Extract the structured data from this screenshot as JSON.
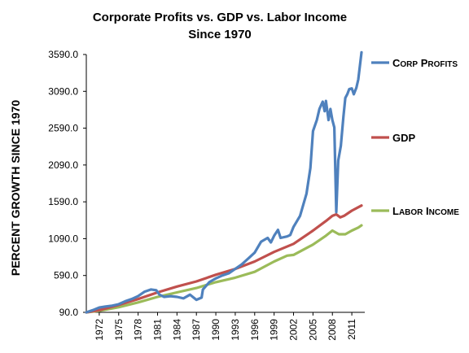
{
  "chart_data": {
    "type": "line",
    "title": "Corporate Profits vs. GDP vs. Labor Income",
    "subtitle": "Since 1970",
    "xlabel": "",
    "ylabel": "PERCENT GROWTH SINCE 1970",
    "xlim": [
      1970,
      2013
    ],
    "ylim": [
      90,
      3590
    ],
    "yticks": [
      90,
      590,
      1090,
      1590,
      2090,
      2590,
      3090,
      3590
    ],
    "ytick_labels": [
      "90.0",
      "590.0",
      "1090.0",
      "1590.0",
      "2090.0",
      "2590.0",
      "3090.0",
      "3590.0"
    ],
    "xtick_labels": [
      "1972",
      "1975",
      "1978",
      "1981",
      "1984",
      "1987",
      "1990",
      "1993",
      "1996",
      "1999",
      "2002",
      "2005",
      "2008",
      "2011"
    ],
    "grid": false,
    "legend": "right",
    "series": [
      {
        "name": "Corp profits",
        "color": "#4f81bd",
        "points": [
          [
            1970,
            90
          ],
          [
            1971,
            120
          ],
          [
            1972,
            155
          ],
          [
            1973,
            170
          ],
          [
            1974,
            180
          ],
          [
            1975,
            200
          ],
          [
            1976,
            240
          ],
          [
            1977,
            270
          ],
          [
            1978,
            310
          ],
          [
            1979,
            370
          ],
          [
            1980,
            400
          ],
          [
            1980.8,
            390
          ],
          [
            1981.3,
            330
          ],
          [
            1982,
            300
          ],
          [
            1983,
            310
          ],
          [
            1984,
            300
          ],
          [
            1985,
            280
          ],
          [
            1986,
            330
          ],
          [
            1987,
            260
          ],
          [
            1987.8,
            290
          ],
          [
            1988,
            400
          ],
          [
            1989,
            500
          ],
          [
            1990,
            550
          ],
          [
            1991,
            590
          ],
          [
            1992,
            620
          ],
          [
            1993,
            680
          ],
          [
            1994,
            740
          ],
          [
            1995,
            820
          ],
          [
            1996,
            900
          ],
          [
            1997,
            1050
          ],
          [
            1998,
            1100
          ],
          [
            1998.5,
            1040
          ],
          [
            1999,
            1130
          ],
          [
            1999.6,
            1210
          ],
          [
            2000,
            1100
          ],
          [
            2001,
            1120
          ],
          [
            2001.5,
            1140
          ],
          [
            2002,
            1250
          ],
          [
            2003,
            1400
          ],
          [
            2004,
            1700
          ],
          [
            2004.6,
            2050
          ],
          [
            2005,
            2550
          ],
          [
            2005.6,
            2700
          ],
          [
            2006,
            2850
          ],
          [
            2006.5,
            2950
          ],
          [
            2006.8,
            2820
          ],
          [
            2007,
            2960
          ],
          [
            2007.4,
            2700
          ],
          [
            2007.7,
            2850
          ],
          [
            2008,
            2700
          ],
          [
            2008.3,
            2600
          ],
          [
            2008.6,
            1450
          ],
          [
            2008.9,
            2150
          ],
          [
            2009.3,
            2350
          ],
          [
            2009.7,
            2750
          ],
          [
            2010,
            3000
          ],
          [
            2010.3,
            3050
          ],
          [
            2010.6,
            3120
          ],
          [
            2011,
            3130
          ],
          [
            2011.3,
            3050
          ],
          [
            2011.7,
            3140
          ],
          [
            2012,
            3250
          ],
          [
            2012.5,
            3620
          ]
        ]
      },
      {
        "name": "GDP",
        "color": "#c0504d",
        "points": [
          [
            1970,
            90
          ],
          [
            1972,
            120
          ],
          [
            1975,
            190
          ],
          [
            1978,
            270
          ],
          [
            1981,
            360
          ],
          [
            1984,
            440
          ],
          [
            1987,
            510
          ],
          [
            1990,
            600
          ],
          [
            1993,
            680
          ],
          [
            1996,
            780
          ],
          [
            1999,
            910
          ],
          [
            2002,
            1020
          ],
          [
            2005,
            1200
          ],
          [
            2007,
            1330
          ],
          [
            2008,
            1400
          ],
          [
            2008.6,
            1420
          ],
          [
            2009.2,
            1380
          ],
          [
            2009.8,
            1400
          ],
          [
            2011,
            1470
          ],
          [
            2012.5,
            1540
          ]
        ]
      },
      {
        "name": "Labor Income",
        "color": "#9bbb59",
        "points": [
          [
            1970,
            90
          ],
          [
            1972,
            110
          ],
          [
            1975,
            160
          ],
          [
            1978,
            225
          ],
          [
            1981,
            300
          ],
          [
            1984,
            360
          ],
          [
            1987,
            420
          ],
          [
            1990,
            500
          ],
          [
            1993,
            560
          ],
          [
            1996,
            640
          ],
          [
            1999,
            780
          ],
          [
            2001,
            860
          ],
          [
            2002,
            870
          ],
          [
            2005,
            1010
          ],
          [
            2007,
            1130
          ],
          [
            2008,
            1200
          ],
          [
            2009,
            1150
          ],
          [
            2010,
            1150
          ],
          [
            2011,
            1200
          ],
          [
            2012,
            1240
          ],
          [
            2012.5,
            1270
          ]
        ]
      }
    ]
  }
}
